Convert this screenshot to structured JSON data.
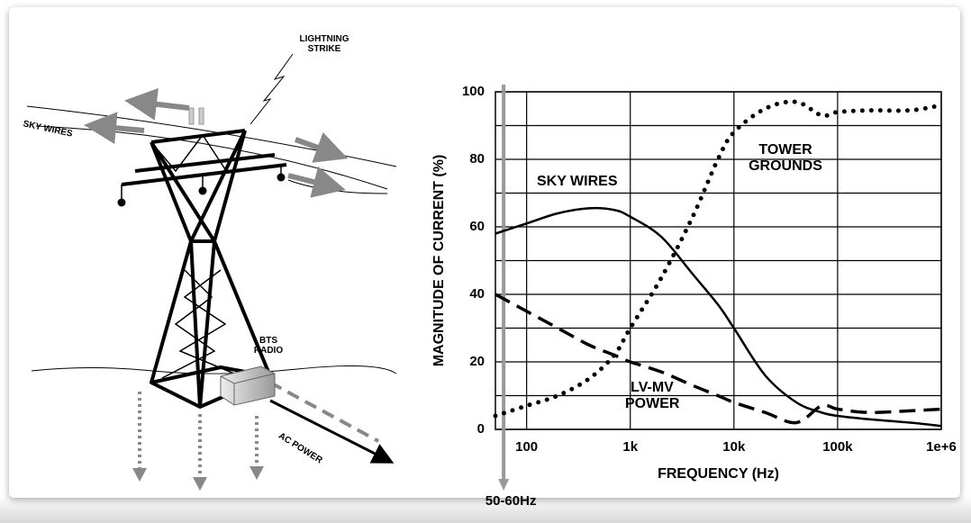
{
  "chart_data": {
    "type": "line",
    "x_label": "FREQUENCY (Hz)",
    "y_label": "MAGNITUDE OF CURRENT (%)",
    "x": [
      50,
      100,
      200,
      400,
      700,
      1000,
      2000,
      4000,
      7000,
      10000,
      20000,
      40000,
      70000,
      100000,
      200000,
      500000,
      1000000
    ],
    "series": [
      {
        "name": "SKY WIRES",
        "color": "#000000",
        "style": "solid",
        "values": [
          58,
          61,
          64,
          65.5,
          65,
          63,
          57,
          46,
          37,
          30,
          16,
          8,
          5,
          4,
          3,
          2,
          1
        ]
      },
      {
        "name": "TOWER GROUNDS",
        "color": "#000000",
        "style": "dotted",
        "values": [
          4,
          7,
          10,
          15,
          22,
          30,
          45,
          63,
          80,
          88,
          95,
          97,
          93,
          94,
          94.5,
          94.5,
          96
        ]
      },
      {
        "name": "LV-MV POWER",
        "color": "#000000",
        "style": "dashed",
        "values": [
          40,
          35,
          30,
          25,
          22,
          20,
          17,
          13,
          10,
          8,
          5,
          2,
          7,
          6,
          5,
          5.5,
          6
        ]
      }
    ],
    "xlim": [
      50,
      1000000
    ],
    "ylim": [
      0,
      100
    ],
    "xscale": "log",
    "xticks": [
      100,
      {
        "value": 1000,
        "label": "1k"
      },
      {
        "value": 10000,
        "label": "10k"
      },
      {
        "value": 100000,
        "label": "100k"
      },
      {
        "value": 1000000,
        "label": "1e+6"
      }
    ],
    "yticks": [
      0,
      20,
      40,
      60,
      80,
      100
    ],
    "minor_yticks": [
      10,
      30,
      50,
      70,
      90
    ],
    "grid": true,
    "marker": {
      "label": "50-60Hz",
      "x": 60,
      "color": "#999999"
    }
  },
  "diagram": {
    "labels": [
      "LIGHTNING STRIKE",
      "SKY WIRES",
      "BTS RADIO",
      "AC POWER"
    ]
  }
}
